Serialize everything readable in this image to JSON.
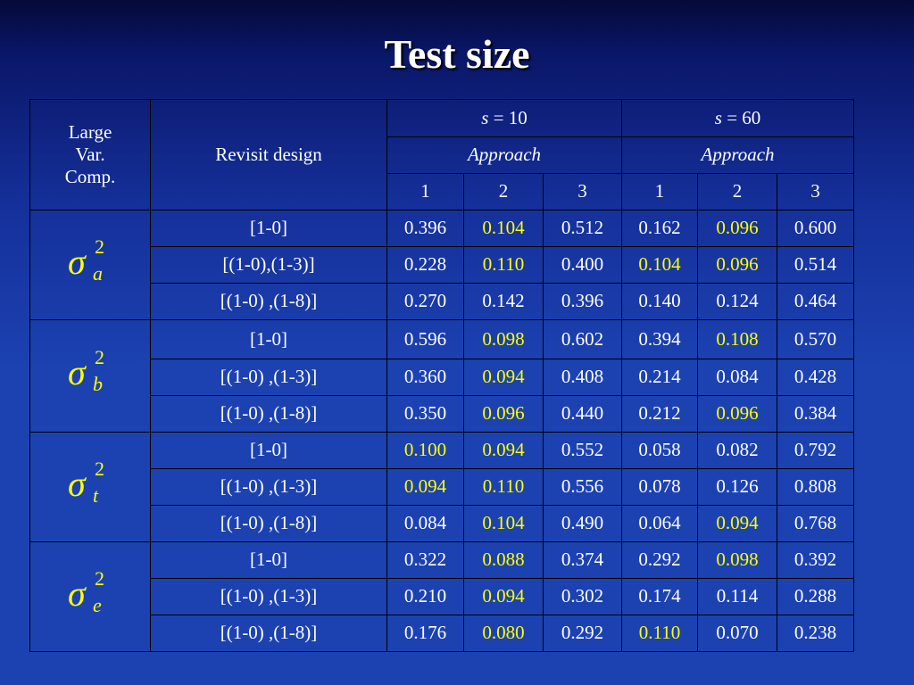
{
  "slide": {
    "title": "Test size"
  },
  "table": {
    "header": {
      "corner_line1": "Large",
      "corner_line2": "Var.",
      "corner_line3": "Comp.",
      "design_label": "Revisit design",
      "group1_var": "s",
      "group1_eq": " = 10",
      "group2_var": "s",
      "group2_eq": " = 60",
      "approach1": "Approach",
      "approach2": "Approach",
      "approach_numbers": [
        "1",
        "2",
        "3",
        "1",
        "2",
        "3"
      ]
    },
    "groups": [
      {
        "symbol": "σ",
        "sup": "2",
        "sub": "a",
        "rows": [
          {
            "design": "[1-0]",
            "values": [
              "0.396",
              "0.104",
              "0.512",
              "0.162",
              "0.096",
              "0.600"
            ],
            "highlight": [
              false,
              true,
              false,
              false,
              true,
              false
            ]
          },
          {
            "design": "[(1-0),(1-3)]",
            "values": [
              "0.228",
              "0.110",
              "0.400",
              "0.104",
              "0.096",
              "0.514"
            ],
            "highlight": [
              false,
              true,
              false,
              true,
              true,
              false
            ]
          },
          {
            "design": "[(1-0) ,(1-8)]",
            "values": [
              "0.270",
              "0.142",
              "0.396",
              "0.140",
              "0.124",
              "0.464"
            ],
            "highlight": [
              false,
              false,
              false,
              false,
              false,
              false
            ]
          }
        ]
      },
      {
        "symbol": "σ",
        "sup": "2",
        "sub": "b",
        "rows": [
          {
            "design": "[1-0]",
            "values": [
              "0.596",
              "0.098",
              "0.602",
              "0.394",
              "0.108",
              "0.570"
            ],
            "highlight": [
              false,
              true,
              false,
              false,
              true,
              false
            ]
          },
          {
            "design": "[(1-0) ,(1-3)]",
            "values": [
              "0.360",
              "0.094",
              "0.408",
              "0.214",
              "0.084",
              "0.428"
            ],
            "highlight": [
              false,
              true,
              false,
              false,
              false,
              false
            ]
          },
          {
            "design": "[(1-0) ,(1-8)]",
            "values": [
              "0.350",
              "0.096",
              "0.440",
              "0.212",
              "0.096",
              "0.384"
            ],
            "highlight": [
              false,
              true,
              false,
              false,
              true,
              false
            ]
          }
        ]
      },
      {
        "symbol": "σ",
        "sup": "2",
        "sub": "t",
        "rows": [
          {
            "design": "[1-0]",
            "values": [
              "0.100",
              "0.094",
              "0.552",
              "0.058",
              "0.082",
              "0.792"
            ],
            "highlight": [
              true,
              true,
              false,
              false,
              false,
              false
            ]
          },
          {
            "design": "[(1-0) ,(1-3)]",
            "values": [
              "0.094",
              "0.110",
              "0.556",
              "0.078",
              "0.126",
              "0.808"
            ],
            "highlight": [
              true,
              true,
              false,
              false,
              false,
              false
            ]
          },
          {
            "design": "[(1-0) ,(1-8)]",
            "values": [
              "0.084",
              "0.104",
              "0.490",
              "0.064",
              "0.094",
              "0.768"
            ],
            "highlight": [
              false,
              true,
              false,
              false,
              true,
              false
            ]
          }
        ]
      },
      {
        "symbol": "σ",
        "sup": "2",
        "sub": "e",
        "rows": [
          {
            "design": "[1-0]",
            "values": [
              "0.322",
              "0.088",
              "0.374",
              "0.292",
              "0.098",
              "0.392"
            ],
            "highlight": [
              false,
              true,
              false,
              false,
              true,
              false
            ]
          },
          {
            "design": "[(1-0) ,(1-3)]",
            "values": [
              "0.210",
              "0.094",
              "0.302",
              "0.174",
              "0.114",
              "0.288"
            ],
            "highlight": [
              false,
              true,
              false,
              false,
              false,
              false
            ]
          },
          {
            "design": "[(1-0) ,(1-8)]",
            "values": [
              "0.176",
              "0.080",
              "0.292",
              "0.110",
              "0.070",
              "0.238"
            ],
            "highlight": [
              false,
              true,
              false,
              true,
              false,
              false
            ]
          }
        ]
      }
    ]
  },
  "colors": {
    "highlight": "#ffff00",
    "text": "#ffffff",
    "background_top": "#050a38",
    "background_bottom": "#1c42b2"
  }
}
